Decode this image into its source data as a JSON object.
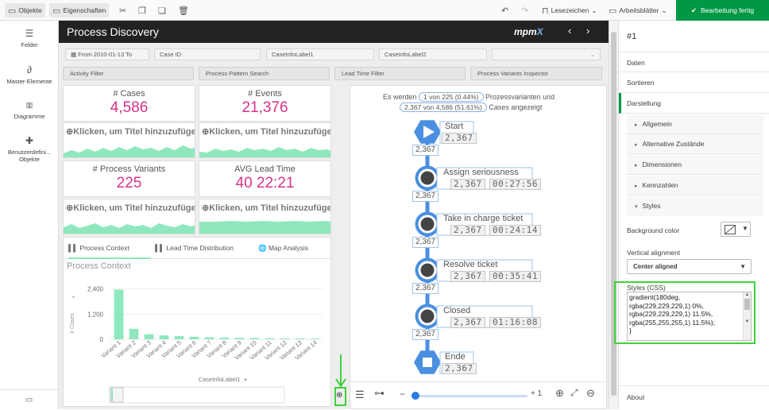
{
  "toolbar": {
    "objects": "Objekte",
    "properties": "Eigenschaften",
    "bookmarks": "Lesezeichen",
    "worksheets": "Arbeitsblätter",
    "finish": "Bearbeitung fertig"
  },
  "left_panel": {
    "items": [
      "Felder",
      "Master-Elemente",
      "Diagramme",
      "Benutzerdefini...",
      "Objekte"
    ]
  },
  "header": {
    "title": "Process Discovery",
    "logo": "mpm",
    "logo_x": "X"
  },
  "filters": {
    "date": "From 2010-01-13 To",
    "case_id": "Case ID",
    "label1": "CaseInfoLabel1",
    "label2": "CaseInfoLabel2"
  },
  "buttons": [
    "Activity Filter",
    "Process Pattern Search",
    "Lead Time Filter",
    "Process Variants Inspector"
  ],
  "kpis": [
    {
      "label": "# Cases",
      "value": "4,586"
    },
    {
      "label": "# Events",
      "value": "21,376"
    },
    {
      "label": "# Process Variants",
      "value": "225"
    },
    {
      "label": "AVG Lead Time",
      "value": "40 22:21"
    }
  ],
  "spark_title": "Klicken, um Titel hinzuzufüge",
  "tabs": {
    "process_context": "Process Context",
    "lead_time": "Lead Time Distribution",
    "map_analysis": "Map Analysis"
  },
  "chart_data": {
    "type": "bar",
    "title": "Process Context",
    "ylabel": "# Cases",
    "xlabel": "CaseInfoLabel1",
    "ylim": [
      0,
      2800
    ],
    "yticks": [
      0,
      1200,
      2400
    ],
    "ytick_labels": [
      "0",
      "1,200",
      "2,400"
    ],
    "categories": [
      "Variant 1",
      "Variant 2",
      "Variant 3",
      "Variant 4",
      "Variant 5",
      "Variant 6",
      "Variant 7",
      "Variant 8",
      "Variant 9",
      "Variant 10",
      "Variant 11",
      "Variant 12",
      "Variant 13",
      "Variant 14"
    ],
    "values": [
      2367,
      500,
      245,
      185,
      150,
      120,
      95,
      80,
      70,
      60,
      50,
      45,
      40,
      35
    ],
    "bar_color": "#8fe8bd"
  },
  "process_map": {
    "stats_line1_prefix": "Es werden",
    "stats_variants": "1 von 225 (0.44%)",
    "stats_line1_suffix": "Prozessvarianten und",
    "stats_cases": "2,367 von 4,586 (51.61%)",
    "stats_line2_suffix": "Cases angezeigt",
    "nodes": [
      {
        "name": "Start",
        "count": "2,367",
        "time": ""
      },
      {
        "name": "Assign seriousness",
        "count": "2,367",
        "time": "00:27:56"
      },
      {
        "name": "Take in charge ticket",
        "count": "2,367",
        "time": "00:24:14"
      },
      {
        "name": "Resolve ticket",
        "count": "2,367",
        "time": "00:35:41"
      },
      {
        "name": "Closed",
        "count": "2,367",
        "time": "01:16:08"
      },
      {
        "name": "Ende",
        "count": "2,367",
        "time": ""
      }
    ],
    "edge_label": "2,367",
    "zoom_minus": "−",
    "zoom_plus": "+ 1"
  },
  "right_panel": {
    "object_id": "#1",
    "sections": [
      "Daten",
      "Sortieren",
      "Darstellung"
    ],
    "subsections": [
      "Allgemein",
      "Alternative Zustände",
      "Dimensionen",
      "Kennzahlen",
      "Styles"
    ],
    "bg_color_label": "Background color",
    "vertical_alignment_label": "Vertical alignment",
    "vertical_alignment_value": "Center aligned",
    "styles_label": "Styles (CSS)",
    "styles_css": "gradient(180deg,\nrgba(229,229,229,1) 0%,\nrgba(229,229,229,1) 11.5%,\nrgba(255,255,255,1) 11.5%);\n}",
    "about": "About"
  },
  "colors": {
    "accent_green": "#009845",
    "kpi_pink": "#d6338a",
    "highlight": "#3ed23b",
    "process_blue": "#4a8fe0"
  }
}
